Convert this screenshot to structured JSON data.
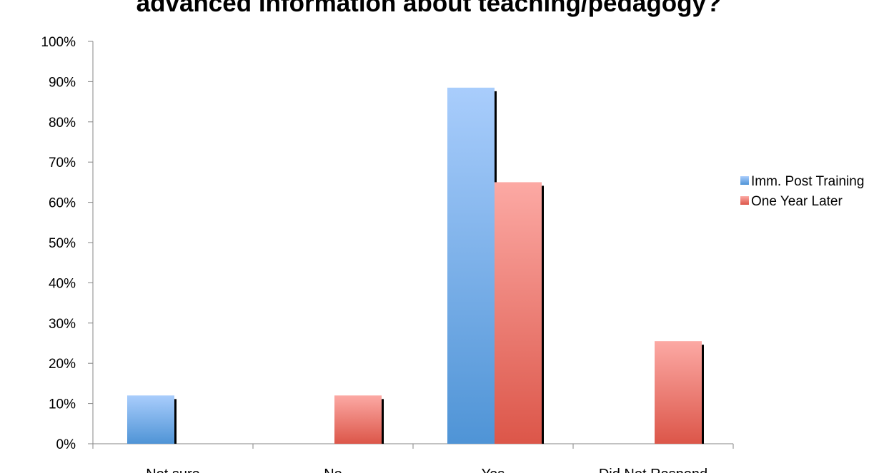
{
  "chart_data": {
    "type": "bar",
    "title": "advanced information about teaching/pedagogy?",
    "categories": [
      "Not sure",
      "No",
      "Yes",
      "Did Not Respond"
    ],
    "series": [
      {
        "name": "Imm. Post Training",
        "values": [
          12,
          0,
          88.5,
          0
        ],
        "color": "#5b9bd5",
        "color_light": "#a9cdfc"
      },
      {
        "name": "One Year Later",
        "values": [
          0,
          12,
          65,
          25.5
        ],
        "color": "#dd5b4d",
        "color_light": "#fca9a4"
      }
    ],
    "ylim": [
      0,
      100
    ],
    "yticks": [
      "0%",
      "10%",
      "20%",
      "30%",
      "40%",
      "50%",
      "60%",
      "70%",
      "80%",
      "90%",
      "100%"
    ],
    "grid": false,
    "legend_position": "right",
    "xlabel": "",
    "ylabel": ""
  }
}
